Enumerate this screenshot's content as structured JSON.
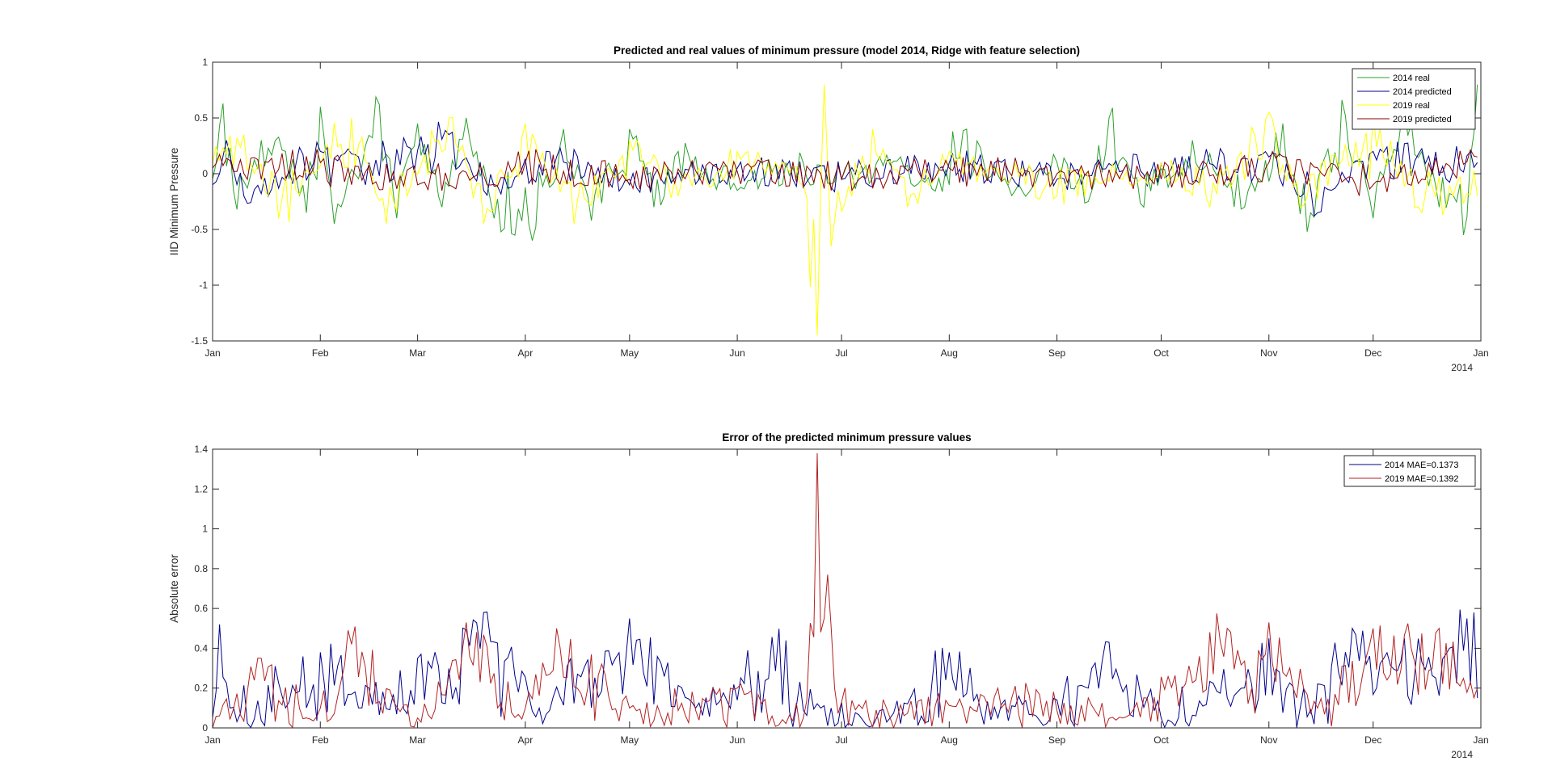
{
  "chart_data": [
    {
      "type": "line",
      "title": "Predicted and real values of minimum pressure (model 2014, Ridge with feature selection)",
      "xlabel": "",
      "ylabel": "IID Minimum Pressure",
      "xlim": [
        "2014-01-01",
        "2015-01-01"
      ],
      "ylim": [
        -1.5,
        1
      ],
      "yticks": [
        "-1.5",
        "-1",
        "-0.5",
        "0",
        "0.5",
        "1"
      ],
      "xticks": [
        "Jan",
        "Feb",
        "Mar",
        "Apr",
        "May",
        "Jun",
        "Jul",
        "Aug",
        "Sep",
        "Oct",
        "Nov",
        "Dec",
        "Jan"
      ],
      "year_label": "2014",
      "legend_position": "top-right",
      "grid": false,
      "series": [
        {
          "name": "2014 real",
          "color": "#2ca02c",
          "keypoints": [
            [
              "2014-01-01",
              -0.05
            ],
            [
              "2014-01-04",
              0.63
            ],
            [
              "2014-01-08",
              -0.32
            ],
            [
              "2014-01-15",
              0.3
            ],
            [
              "2014-01-22",
              0.2
            ],
            [
              "2014-01-28",
              -0.35
            ],
            [
              "2014-02-01",
              0.6
            ],
            [
              "2014-02-05",
              -0.45
            ],
            [
              "2014-02-14",
              0.25
            ],
            [
              "2014-02-18",
              0.62
            ],
            [
              "2014-02-23",
              -0.4
            ],
            [
              "2014-03-01",
              0.45
            ],
            [
              "2014-03-08",
              -0.3
            ],
            [
              "2014-03-15",
              0.5
            ],
            [
              "2014-03-23",
              -0.4
            ],
            [
              "2014-04-03",
              -0.6
            ],
            [
              "2014-04-12",
              0.4
            ],
            [
              "2014-04-20",
              -0.42
            ],
            [
              "2014-05-01",
              0.4
            ],
            [
              "2014-05-08",
              -0.3
            ],
            [
              "2014-05-15",
              0.2
            ],
            [
              "2014-06-01",
              -0.15
            ],
            [
              "2014-06-15",
              0.1
            ],
            [
              "2014-07-01",
              -0.05
            ],
            [
              "2014-07-15",
              0.08
            ],
            [
              "2014-08-01",
              -0.1
            ],
            [
              "2014-08-02",
              0.38
            ],
            [
              "2014-08-20",
              -0.15
            ],
            [
              "2014-09-01",
              0.1
            ],
            [
              "2014-09-10",
              -0.25
            ],
            [
              "2014-09-16",
              0.5
            ],
            [
              "2014-09-26",
              -0.3
            ],
            [
              "2014-10-10",
              0.3
            ],
            [
              "2014-10-25",
              -0.3
            ],
            [
              "2014-11-05",
              0.45
            ],
            [
              "2014-11-12",
              -0.52
            ],
            [
              "2014-11-22",
              0.66
            ],
            [
              "2014-12-01",
              -0.4
            ],
            [
              "2014-12-10",
              0.6
            ],
            [
              "2014-12-20",
              -0.3
            ],
            [
              "2014-12-27",
              -0.55
            ],
            [
              "2014-12-31",
              0.8
            ]
          ]
        },
        {
          "name": "2014 predicted",
          "color": "#00008b",
          "keypoints": [
            [
              "2014-01-01",
              -0.1
            ],
            [
              "2014-01-05",
              0.3
            ],
            [
              "2014-01-10",
              -0.2
            ],
            [
              "2014-02-01",
              0.2
            ],
            [
              "2014-02-15",
              0.1
            ],
            [
              "2014-03-10",
              0.35
            ],
            [
              "2014-03-20",
              -0.15
            ],
            [
              "2014-04-10",
              0.15
            ],
            [
              "2014-05-01",
              -0.1
            ],
            [
              "2014-06-01",
              0.05
            ],
            [
              "2014-07-01",
              -0.05
            ],
            [
              "2014-08-01",
              0.1
            ],
            [
              "2014-09-01",
              -0.05
            ],
            [
              "2014-10-01",
              0.1
            ],
            [
              "2014-11-01",
              0.15
            ],
            [
              "2014-11-15",
              -0.35
            ],
            [
              "2014-12-01",
              0.2
            ],
            [
              "2014-12-31",
              0.1
            ]
          ]
        },
        {
          "name": "2019 real",
          "color": "#ffff00",
          "keypoints": [
            [
              "2014-01-01",
              0.1
            ],
            [
              "2014-01-10",
              0.35
            ],
            [
              "2014-01-20",
              -0.4
            ],
            [
              "2014-02-10",
              0.5
            ],
            [
              "2014-02-20",
              -0.45
            ],
            [
              "2014-03-10",
              0.5
            ],
            [
              "2014-03-20",
              -0.45
            ],
            [
              "2014-04-01",
              0.45
            ],
            [
              "2014-04-15",
              -0.45
            ],
            [
              "2014-05-01",
              0.3
            ],
            [
              "2014-05-15",
              -0.2
            ],
            [
              "2014-06-01",
              0.2
            ],
            [
              "2014-06-20",
              -0.1
            ],
            [
              "2014-06-24",
              -1.45
            ],
            [
              "2014-06-26",
              0.8
            ],
            [
              "2014-06-28",
              -0.65
            ],
            [
              "2014-07-10",
              0.4
            ],
            [
              "2014-07-20",
              -0.3
            ],
            [
              "2014-08-01",
              0.2
            ],
            [
              "2014-09-01",
              -0.2
            ],
            [
              "2014-10-01",
              0.1
            ],
            [
              "2014-10-15",
              -0.3
            ],
            [
              "2014-11-01",
              0.55
            ],
            [
              "2014-11-10",
              -0.3
            ],
            [
              "2014-12-01",
              0.55
            ],
            [
              "2014-12-15",
              -0.35
            ],
            [
              "2014-12-31",
              -0.2
            ]
          ]
        },
        {
          "name": "2019 predicted",
          "color": "#8b0000",
          "keypoints": [
            [
              "2014-01-01",
              0.05
            ],
            [
              "2014-02-01",
              0.1
            ],
            [
              "2014-03-01",
              -0.1
            ],
            [
              "2014-04-01",
              0.1
            ],
            [
              "2014-05-01",
              -0.05
            ],
            [
              "2014-06-01",
              0.02
            ],
            [
              "2014-07-01",
              -0.05
            ],
            [
              "2014-08-01",
              0.05
            ],
            [
              "2014-09-01",
              0.0
            ],
            [
              "2014-10-01",
              -0.05
            ],
            [
              "2014-11-01",
              0.1
            ],
            [
              "2014-12-01",
              -0.1
            ],
            [
              "2014-12-31",
              0.15
            ]
          ]
        }
      ]
    },
    {
      "type": "line",
      "title": "Error of the predicted minimum pressure values",
      "xlabel": "",
      "ylabel": "Absolute error",
      "xlim": [
        "2014-01-01",
        "2015-01-01"
      ],
      "ylim": [
        0,
        1.4
      ],
      "yticks": [
        "0",
        "0.2",
        "0.4",
        "0.6",
        "0.8",
        "1",
        "1.2",
        "1.4"
      ],
      "xticks": [
        "Jan",
        "Feb",
        "Mar",
        "Apr",
        "May",
        "Jun",
        "Jul",
        "Aug",
        "Sep",
        "Oct",
        "Nov",
        "Dec",
        "Jan"
      ],
      "year_label": "2014",
      "legend_position": "top-right",
      "grid": false,
      "series": [
        {
          "name": "2014 MAE=0.1373",
          "color": "#00008b",
          "keypoints": [
            [
              "2014-01-01",
              0.05
            ],
            [
              "2014-01-03",
              0.52
            ],
            [
              "2014-01-06",
              0.1
            ],
            [
              "2014-02-01",
              0.38
            ],
            [
              "2014-02-15",
              0.2
            ],
            [
              "2014-03-01",
              0.35
            ],
            [
              "2014-03-20",
              0.58
            ],
            [
              "2014-04-05",
              0.1
            ],
            [
              "2014-05-01",
              0.55
            ],
            [
              "2014-05-20",
              0.1
            ],
            [
              "2014-06-15",
              0.44
            ],
            [
              "2014-06-25",
              0.1
            ],
            [
              "2014-07-15",
              0.05
            ],
            [
              "2014-08-01",
              0.38
            ],
            [
              "2014-08-15",
              0.05
            ],
            [
              "2014-09-10",
              0.2
            ],
            [
              "2014-09-16",
              0.43
            ],
            [
              "2014-10-01",
              0.05
            ],
            [
              "2014-11-01",
              0.45
            ],
            [
              "2014-11-10",
              0.1
            ],
            [
              "2014-11-25",
              0.5
            ],
            [
              "2014-12-10",
              0.45
            ],
            [
              "2014-12-28",
              0.55
            ],
            [
              "2014-12-30",
              0.58
            ],
            [
              "2014-12-31",
              0.15
            ]
          ]
        },
        {
          "name": "2019 MAE=0.1392",
          "color": "#b22222",
          "keypoints": [
            [
              "2014-01-01",
              0.0
            ],
            [
              "2014-01-15",
              0.35
            ],
            [
              "2014-02-01",
              0.1
            ],
            [
              "2014-02-10",
              0.42
            ],
            [
              "2014-03-01",
              0.05
            ],
            [
              "2014-03-15",
              0.53
            ],
            [
              "2014-04-01",
              0.1
            ],
            [
              "2014-04-10",
              0.5
            ],
            [
              "2014-05-01",
              0.1
            ],
            [
              "2014-06-01",
              0.2
            ],
            [
              "2014-06-20",
              0.05
            ],
            [
              "2014-06-24",
              1.38
            ],
            [
              "2014-06-26",
              0.55
            ],
            [
              "2014-06-27",
              0.77
            ],
            [
              "2014-06-29",
              0.2
            ],
            [
              "2014-07-15",
              0.05
            ],
            [
              "2014-08-15",
              0.2
            ],
            [
              "2014-09-20",
              0.05
            ],
            [
              "2014-10-20",
              0.5
            ],
            [
              "2014-11-01",
              0.53
            ],
            [
              "2014-11-15",
              0.1
            ],
            [
              "2014-12-01",
              0.5
            ],
            [
              "2014-12-20",
              0.5
            ],
            [
              "2014-12-31",
              0.2
            ]
          ]
        }
      ]
    }
  ]
}
